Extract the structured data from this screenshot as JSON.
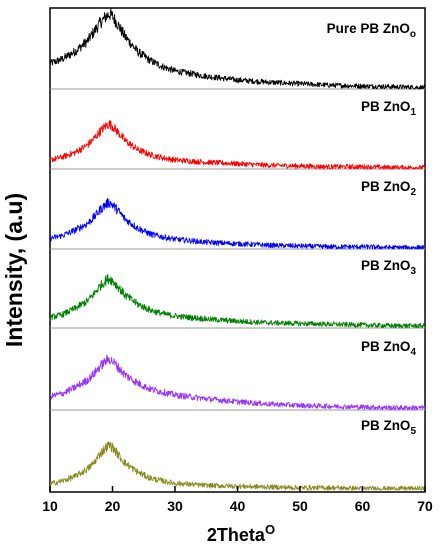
{
  "chart_data": {
    "type": "line",
    "title": "",
    "xlabel": "2Theta",
    "xlabel_superscript": "O",
    "ylabel": "Intensity, (a.u)",
    "xlim": [
      10,
      70
    ],
    "xticks": [
      10,
      20,
      30,
      40,
      50,
      60,
      70
    ],
    "grid": false,
    "legend": "none",
    "series": [
      {
        "name": "Pure PB ZnO",
        "subscript": "o",
        "color": "#000000",
        "peak_x": 19.5,
        "x": [
          10,
          12,
          14,
          16,
          17,
          18,
          19,
          19.5,
          20,
          21,
          22,
          24,
          26,
          28,
          30,
          35,
          40,
          45,
          50,
          55,
          60,
          65,
          70
        ],
        "y": [
          0.34,
          0.4,
          0.5,
          0.64,
          0.76,
          0.88,
          0.97,
          1.0,
          0.97,
          0.84,
          0.7,
          0.5,
          0.38,
          0.3,
          0.24,
          0.17,
          0.12,
          0.09,
          0.07,
          0.05,
          0.04,
          0.03,
          0.02
        ]
      },
      {
        "name": "PB ZnO",
        "subscript": "1",
        "color": "#ff0000",
        "peak_x": 19.5,
        "x": [
          10,
          12,
          14,
          16,
          17,
          18,
          19,
          19.5,
          20,
          21,
          22,
          24,
          26,
          28,
          30,
          35,
          40,
          45,
          50,
          55,
          60,
          65,
          70
        ],
        "y": [
          0.12,
          0.16,
          0.22,
          0.32,
          0.4,
          0.5,
          0.58,
          0.6,
          0.57,
          0.48,
          0.38,
          0.26,
          0.19,
          0.15,
          0.12,
          0.09,
          0.07,
          0.05,
          0.04,
          0.03,
          0.03,
          0.02,
          0.02
        ]
      },
      {
        "name": "PB ZnO",
        "subscript": "2",
        "color": "#0000ff",
        "peak_x": 19.5,
        "x": [
          10,
          12,
          14,
          16,
          17,
          18,
          19,
          19.5,
          20,
          21,
          22,
          24,
          26,
          28,
          30,
          35,
          40,
          45,
          50,
          55,
          60,
          65,
          70
        ],
        "y": [
          0.14,
          0.18,
          0.25,
          0.34,
          0.42,
          0.52,
          0.6,
          0.62,
          0.59,
          0.5,
          0.4,
          0.28,
          0.2,
          0.16,
          0.13,
          0.09,
          0.07,
          0.05,
          0.04,
          0.03,
          0.03,
          0.02,
          0.02
        ]
      },
      {
        "name": "PB ZnO",
        "subscript": "3",
        "color": "#008000",
        "peak_x": 19.5,
        "x": [
          10,
          12,
          14,
          16,
          17,
          18,
          19,
          19.5,
          20,
          21,
          22,
          24,
          26,
          28,
          30,
          35,
          40,
          45,
          50,
          55,
          60,
          65,
          70
        ],
        "y": [
          0.14,
          0.18,
          0.26,
          0.36,
          0.45,
          0.56,
          0.64,
          0.66,
          0.63,
          0.54,
          0.44,
          0.32,
          0.24,
          0.19,
          0.16,
          0.12,
          0.09,
          0.07,
          0.06,
          0.05,
          0.04,
          0.03,
          0.03
        ]
      },
      {
        "name": "PB ZnO",
        "subscript": "4",
        "color": "#9933ff",
        "peak_x": 19.5,
        "x": [
          10,
          12,
          14,
          16,
          17,
          18,
          19,
          19.5,
          20,
          21,
          22,
          24,
          26,
          28,
          30,
          35,
          40,
          45,
          50,
          55,
          60,
          65,
          70
        ],
        "y": [
          0.18,
          0.22,
          0.3,
          0.4,
          0.48,
          0.58,
          0.66,
          0.68,
          0.65,
          0.56,
          0.47,
          0.36,
          0.28,
          0.24,
          0.2,
          0.15,
          0.11,
          0.08,
          0.06,
          0.05,
          0.04,
          0.03,
          0.03
        ]
      },
      {
        "name": "PB ZnO",
        "subscript": "5",
        "color": "#8b8b1f",
        "peak_x": 19.5,
        "x": [
          10,
          12,
          14,
          16,
          17,
          18,
          19,
          19.5,
          20,
          21,
          22,
          24,
          26,
          28,
          30,
          35,
          40,
          45,
          50,
          55,
          60,
          65,
          70
        ],
        "y": [
          0.08,
          0.12,
          0.18,
          0.28,
          0.36,
          0.48,
          0.57,
          0.6,
          0.57,
          0.46,
          0.36,
          0.24,
          0.16,
          0.12,
          0.09,
          0.06,
          0.05,
          0.04,
          0.03,
          0.03,
          0.02,
          0.02,
          0.02
        ]
      }
    ]
  }
}
